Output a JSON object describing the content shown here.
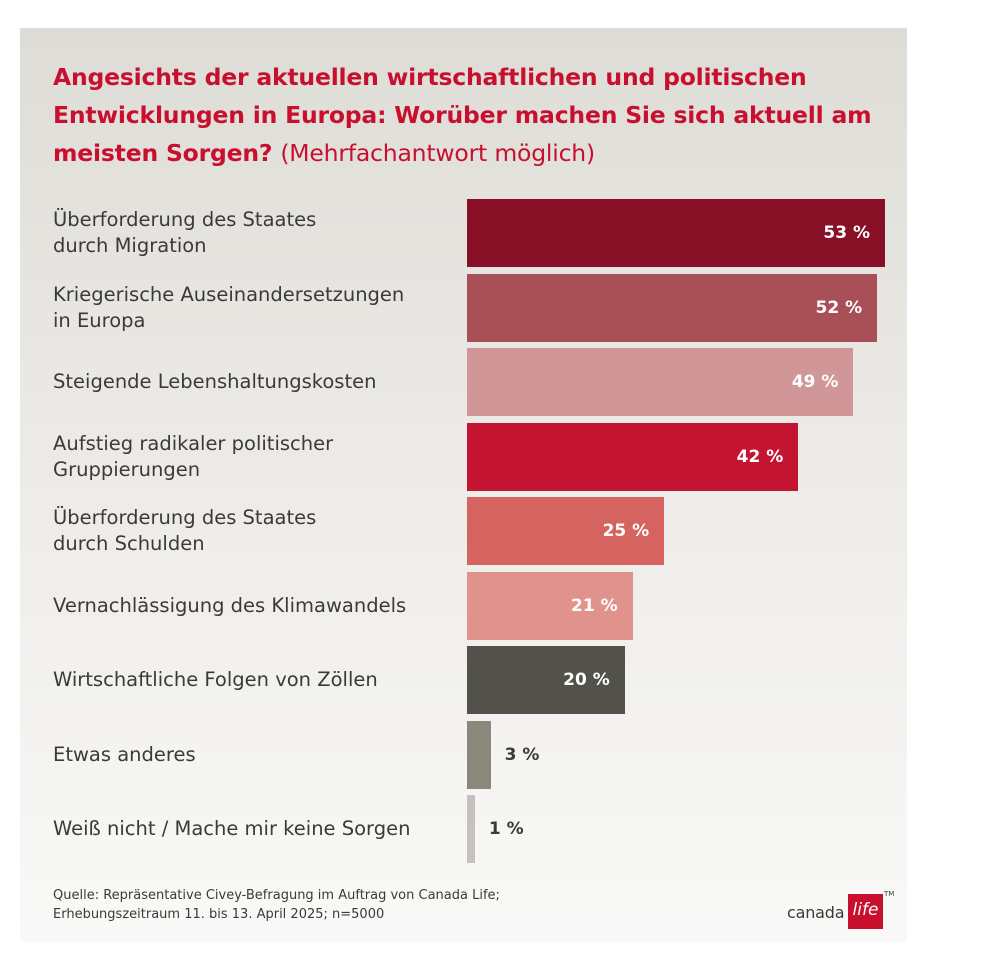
{
  "title": {
    "main": "Angesichts der aktuellen wirtschaftlichen und politischen Entwicklungen in Europa: Worüber machen Sie sich aktuell am meisten Sorgen?",
    "note": "(Mehrfachantwort möglich)"
  },
  "chart_data": {
    "type": "bar",
    "orientation": "horizontal",
    "xlim": [
      0,
      53
    ],
    "categories": [
      "Überforderung des Staates durch Migration",
      "Kriegerische Auseinandersetzungen in Europa",
      "Steigende Lebenshaltungskosten",
      "Aufstieg radikaler politischer Gruppierungen",
      "Überforderung des Staates durch Schulden",
      "Vernachlässigung des Klimawandels",
      "Wirtschaftliche Folgen von Zöllen",
      "Etwas anderes",
      "Weiß nicht / Mache mir keine Sorgen"
    ],
    "label_lines": [
      [
        "Überforderung des Staates",
        "durch Migration"
      ],
      [
        "Kriegerische Auseinandersetzungen",
        "in Europa"
      ],
      [
        "Steigende Lebenshaltungskosten"
      ],
      [
        "Aufstieg radikaler politischer",
        "Gruppierungen"
      ],
      [
        "Überforderung des Staates",
        "durch Schulden"
      ],
      [
        "Vernachlässigung des Klimawandels"
      ],
      [
        "Wirtschaftliche Folgen von Zöllen"
      ],
      [
        "Etwas anderes"
      ],
      [
        "Weiß nicht / Mache mir keine Sorgen"
      ]
    ],
    "values": [
      53,
      52,
      49,
      42,
      25,
      21,
      20,
      3,
      1
    ],
    "value_labels": [
      "53 %",
      "52 %",
      "49 %",
      "42 %",
      "25 %",
      "21 %",
      "20 %",
      "3 %",
      "1 %"
    ],
    "colors": [
      "#870f26",
      "#a94f57",
      "#d09698",
      "#c31431",
      "#d5635f",
      "#e0928d",
      "#52514a",
      "#8b877a",
      "#c6c2bb"
    ],
    "grid": false,
    "legend": "none"
  },
  "source": {
    "line1": "Quelle: Repräsentative Civey-Befragung im Auftrag von Canada Life;",
    "line2": "Erhebungszeitraum 11. bis 13. April 2025; n=5000"
  },
  "logo": {
    "word": "canada",
    "box_text": "life",
    "tm": "TM",
    "accent": "#c8102e"
  }
}
